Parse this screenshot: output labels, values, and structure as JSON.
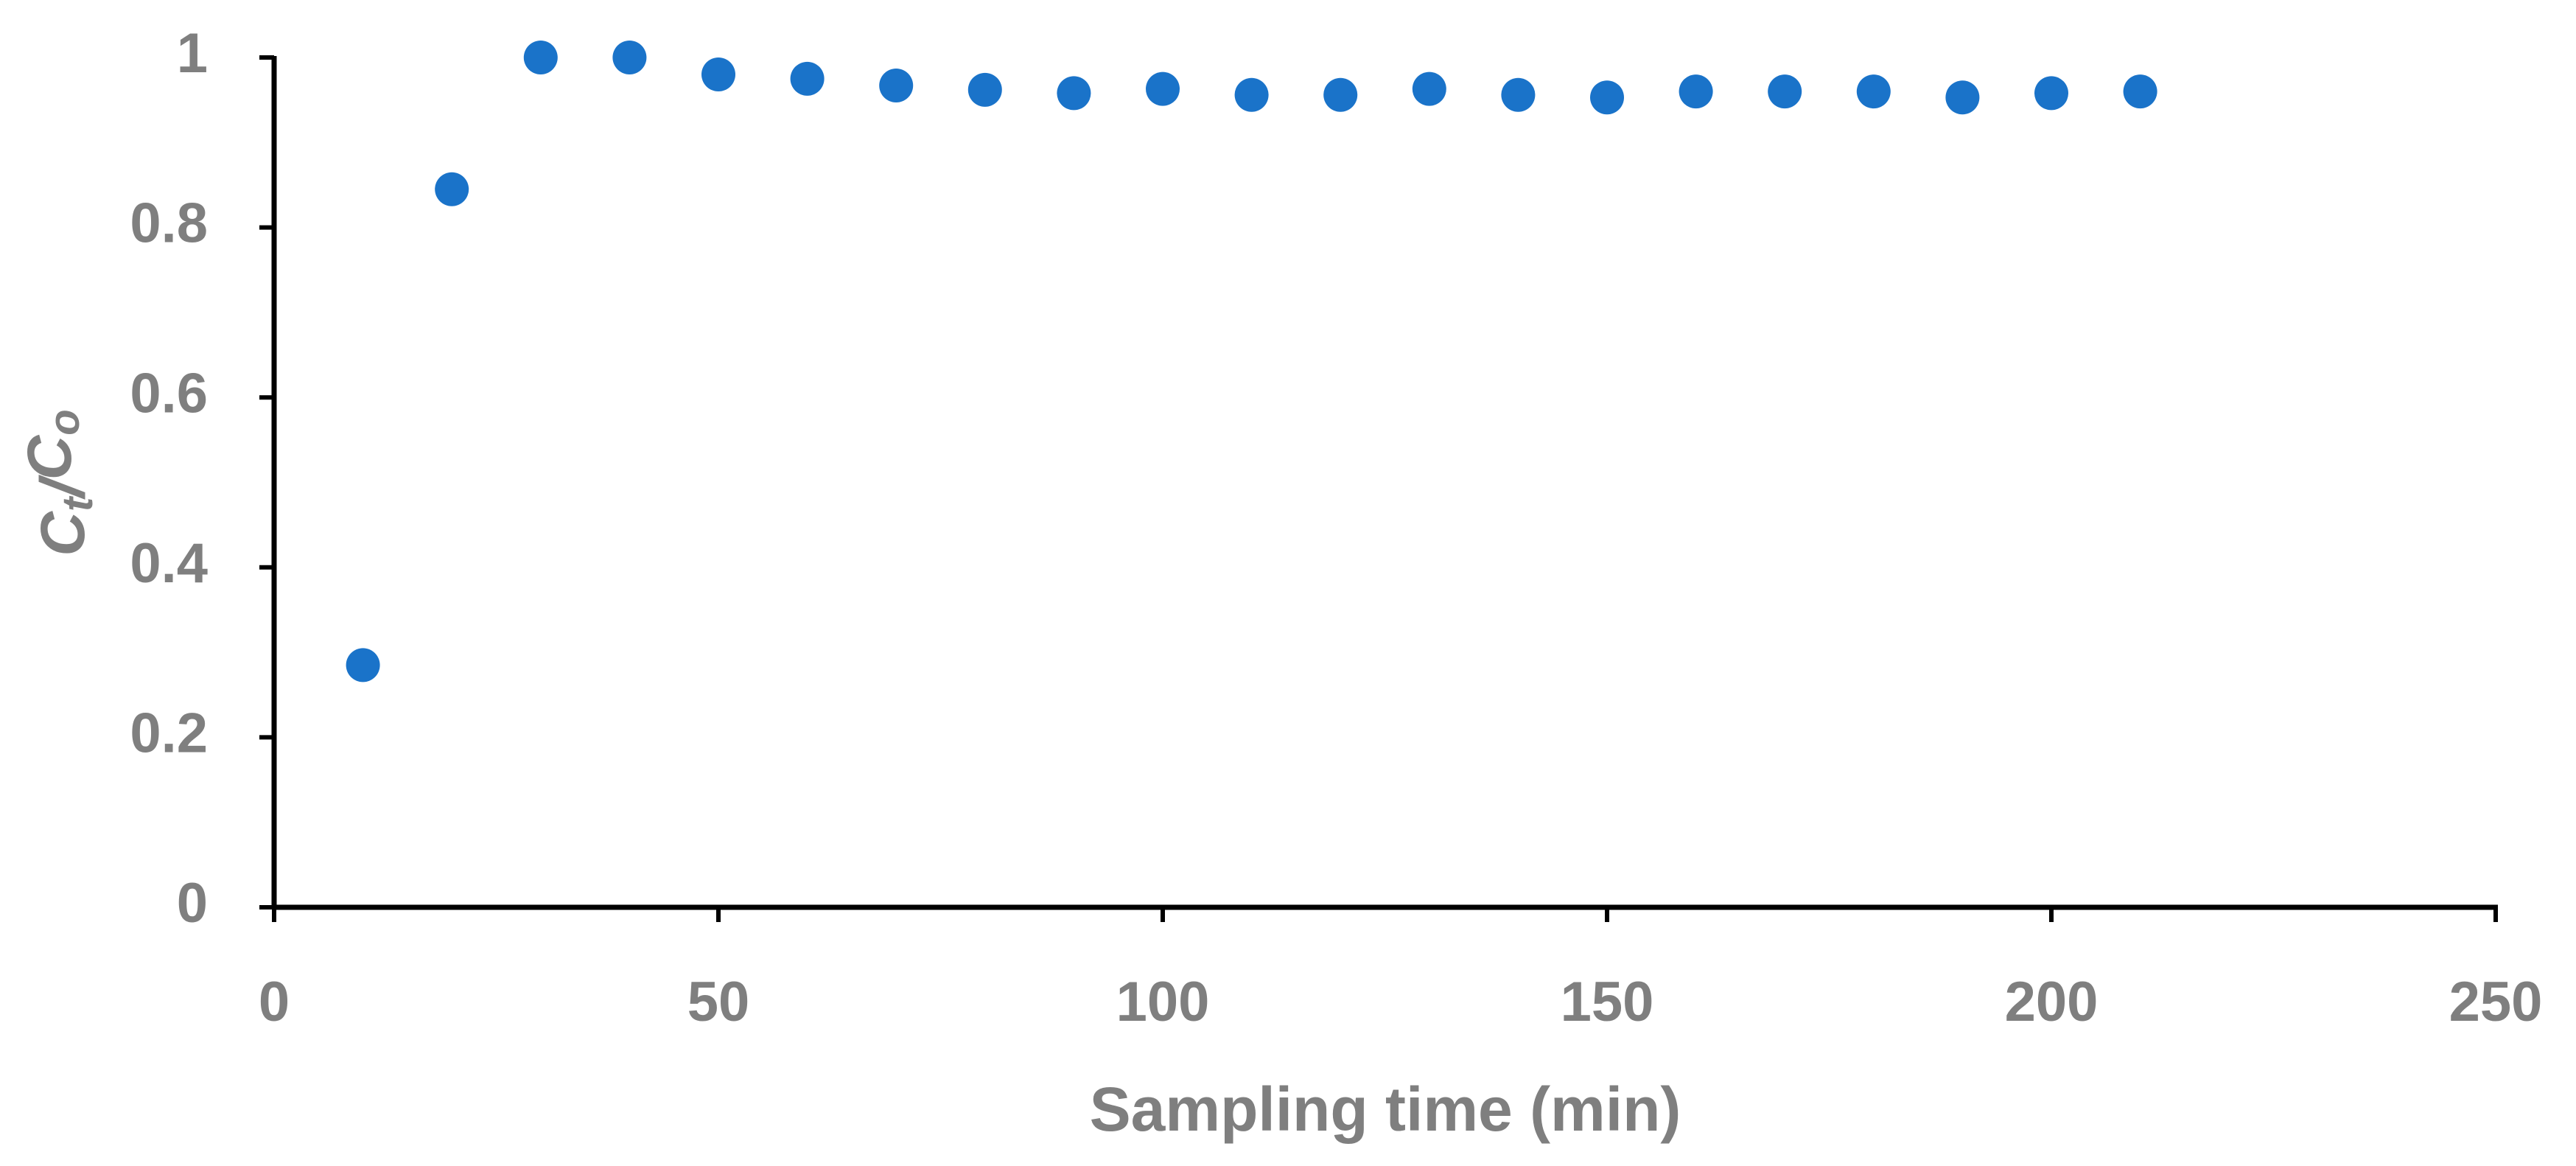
{
  "chart_data": {
    "type": "scatter",
    "xlabel": "Sampling time (min)",
    "ylabel": "Ct/Co",
    "x": [
      10,
      20,
      30,
      40,
      50,
      60,
      70,
      80,
      90,
      100,
      110,
      120,
      130,
      140,
      150,
      160,
      170,
      180,
      190,
      200,
      210
    ],
    "series": [
      {
        "color": "#1a73c9",
        "values": [
          0.285,
          0.845,
          1.0,
          1.0,
          0.98,
          0.975,
          0.967,
          0.962,
          0.958,
          0.963,
          0.956,
          0.956,
          0.963,
          0.956,
          0.953,
          0.96,
          0.96,
          0.96,
          0.953,
          0.958,
          0.96
        ]
      }
    ],
    "xlim": [
      0,
      250
    ],
    "xticks": [
      0,
      50,
      100,
      150,
      200,
      250
    ],
    "ylim": [
      0,
      1
    ],
    "yticks": [
      0,
      0.2,
      0.4,
      0.6,
      0.8,
      1
    ],
    "grid": false
  }
}
